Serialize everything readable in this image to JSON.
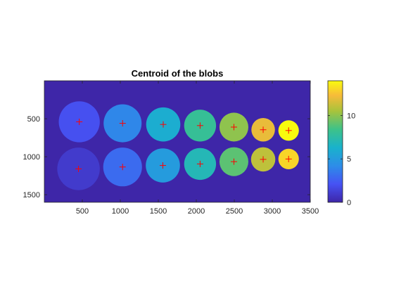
{
  "chart_data": {
    "type": "scatter",
    "title": "Centroid of the blobs",
    "xlabel": "",
    "ylabel": "",
    "xlim": [
      0,
      3500
    ],
    "ylim": [
      0,
      1600
    ],
    "y_reversed": true,
    "background_color": "#3e26a8",
    "marker": {
      "symbol": "+",
      "color": "#ff0000"
    },
    "x_ticks": [
      500,
      1000,
      1500,
      2000,
      2500,
      3000,
      3500
    ],
    "y_ticks": [
      500,
      1000,
      1500
    ],
    "grid": false,
    "colorbar": {
      "range": [
        0,
        14
      ],
      "ticks": [
        0,
        5,
        10
      ],
      "colormap": "parula"
    },
    "blobs": [
      {
        "label": 1,
        "x": 450,
        "y": 1160,
        "radius": 280
      },
      {
        "label": 2,
        "x": 460,
        "y": 540,
        "radius": 270
      },
      {
        "label": 3,
        "x": 1030,
        "y": 1135,
        "radius": 255
      },
      {
        "label": 4,
        "x": 1030,
        "y": 560,
        "radius": 250
      },
      {
        "label": 5,
        "x": 1560,
        "y": 1115,
        "radius": 225
      },
      {
        "label": 6,
        "x": 1565,
        "y": 575,
        "radius": 225
      },
      {
        "label": 7,
        "x": 2050,
        "y": 1095,
        "radius": 210
      },
      {
        "label": 8,
        "x": 2050,
        "y": 590,
        "radius": 210
      },
      {
        "label": 9,
        "x": 2495,
        "y": 1065,
        "radius": 190
      },
      {
        "label": 10,
        "x": 2495,
        "y": 610,
        "radius": 190
      },
      {
        "label": 11,
        "x": 2880,
        "y": 1035,
        "radius": 160
      },
      {
        "label": 12,
        "x": 2880,
        "y": 645,
        "radius": 155
      },
      {
        "label": 13,
        "x": 3215,
        "y": 1030,
        "radius": 135
      },
      {
        "label": 14,
        "x": 3215,
        "y": 655,
        "radius": 135
      }
    ]
  }
}
